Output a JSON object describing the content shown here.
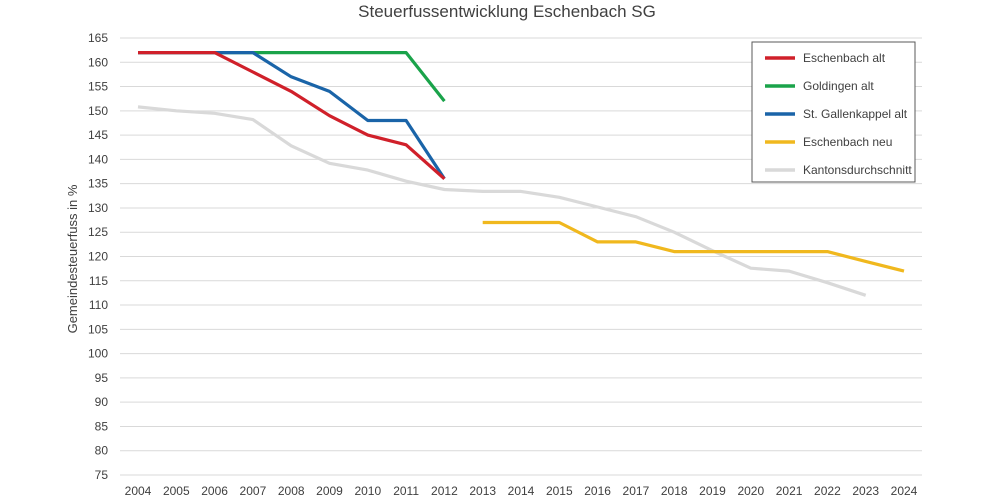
{
  "chart_data": {
    "type": "line",
    "title": "Steuerfussentwicklung Eschenbach SG",
    "xlabel": "",
    "ylabel": "Gemeindesteuerfuss in %",
    "ylim": [
      75,
      165
    ],
    "yticks": [
      75,
      80,
      85,
      90,
      95,
      100,
      105,
      110,
      115,
      120,
      125,
      130,
      135,
      140,
      145,
      150,
      155,
      160,
      165
    ],
    "x": [
      2004,
      2005,
      2006,
      2007,
      2008,
      2009,
      2010,
      2011,
      2012,
      2013,
      2014,
      2015,
      2016,
      2017,
      2018,
      2019,
      2020,
      2021,
      2022,
      2023,
      2024
    ],
    "grid": "horizontal",
    "legend_position": "top-right",
    "series": [
      {
        "name": "Eschenbach alt",
        "color": "#d0202a",
        "points": [
          [
            2004,
            162
          ],
          [
            2005,
            162
          ],
          [
            2006,
            162
          ],
          [
            2007,
            158
          ],
          [
            2008,
            154
          ],
          [
            2009,
            149
          ],
          [
            2010,
            145
          ],
          [
            2011,
            143
          ],
          [
            2012,
            136
          ]
        ]
      },
      {
        "name": "Goldingen alt",
        "color": "#1aa34a",
        "points": [
          [
            2004,
            162
          ],
          [
            2005,
            162
          ],
          [
            2006,
            162
          ],
          [
            2007,
            162
          ],
          [
            2008,
            162
          ],
          [
            2009,
            162
          ],
          [
            2010,
            162
          ],
          [
            2011,
            162
          ],
          [
            2012,
            152
          ]
        ]
      },
      {
        "name": "St. Gallenkappel alt",
        "color": "#1a64a8",
        "points": [
          [
            2004,
            162
          ],
          [
            2005,
            162
          ],
          [
            2006,
            162
          ],
          [
            2007,
            162
          ],
          [
            2008,
            157
          ],
          [
            2009,
            154
          ],
          [
            2010,
            148
          ],
          [
            2011,
            148
          ],
          [
            2012,
            136
          ]
        ]
      },
      {
        "name": "Eschenbach neu",
        "color": "#f0b81e",
        "points": [
          [
            2013,
            127
          ],
          [
            2014,
            127
          ],
          [
            2015,
            127
          ],
          [
            2016,
            123
          ],
          [
            2017,
            123
          ],
          [
            2018,
            121
          ],
          [
            2019,
            121
          ],
          [
            2020,
            121
          ],
          [
            2021,
            121
          ],
          [
            2022,
            121
          ],
          [
            2023,
            119
          ],
          [
            2024,
            117
          ]
        ]
      },
      {
        "name": "Kantonsdurchschnitt",
        "color": "#d9d9d9",
        "points": [
          [
            2004,
            150.8
          ],
          [
            2005,
            150
          ],
          [
            2006,
            149.5
          ],
          [
            2007,
            148.2
          ],
          [
            2008,
            142.8
          ],
          [
            2009,
            139.2
          ],
          [
            2010,
            137.8
          ],
          [
            2011,
            135.5
          ],
          [
            2012,
            133.8
          ],
          [
            2013,
            133.4
          ],
          [
            2014,
            133.4
          ],
          [
            2015,
            132.2
          ],
          [
            2016,
            130.2
          ],
          [
            2017,
            128.2
          ],
          [
            2018,
            125
          ],
          [
            2019,
            121.2
          ],
          [
            2020,
            117.6
          ],
          [
            2021,
            117
          ],
          [
            2022,
            114.6
          ],
          [
            2023,
            112
          ]
        ]
      }
    ]
  }
}
